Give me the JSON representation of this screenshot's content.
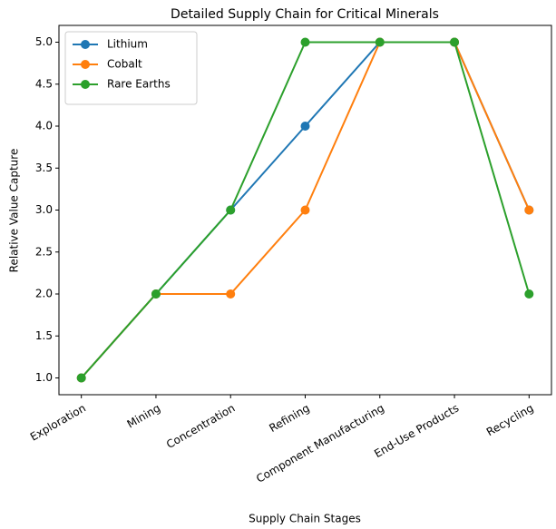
{
  "chart_data": {
    "type": "line",
    "title": "Detailed Supply Chain for Critical Minerals",
    "xlabel": "Supply Chain Stages",
    "ylabel": "Relative Value Capture",
    "categories": [
      "Exploration",
      "Mining",
      "Concentration",
      "Refining",
      "Component Manufacturing",
      "End-Use Products",
      "Recycling"
    ],
    "series": [
      {
        "name": "Lithium",
        "color": "#1f77b4",
        "values": [
          1,
          2,
          3,
          4,
          5,
          5,
          3
        ]
      },
      {
        "name": "Cobalt",
        "color": "#ff7f0e",
        "values": [
          1,
          2,
          2,
          3,
          5,
          5,
          3
        ]
      },
      {
        "name": "Rare Earths",
        "color": "#2ca02c",
        "values": [
          1,
          2,
          3,
          5,
          5,
          5,
          2
        ]
      }
    ],
    "ylim": [
      0.8,
      5.2
    ],
    "yticks": [
      {
        "value": 1,
        "label": "1.0"
      },
      {
        "value": 1.5,
        "label": "1.5"
      },
      {
        "value": 2,
        "label": "2.0"
      },
      {
        "value": 2.5,
        "label": "2.5"
      },
      {
        "value": 3,
        "label": "3.0"
      },
      {
        "value": 3.5,
        "label": "3.5"
      },
      {
        "value": 4,
        "label": "4.0"
      },
      {
        "value": 4.5,
        "label": "4.5"
      },
      {
        "value": 5,
        "label": "5.0"
      }
    ],
    "legend": "upper left",
    "grid": false
  }
}
